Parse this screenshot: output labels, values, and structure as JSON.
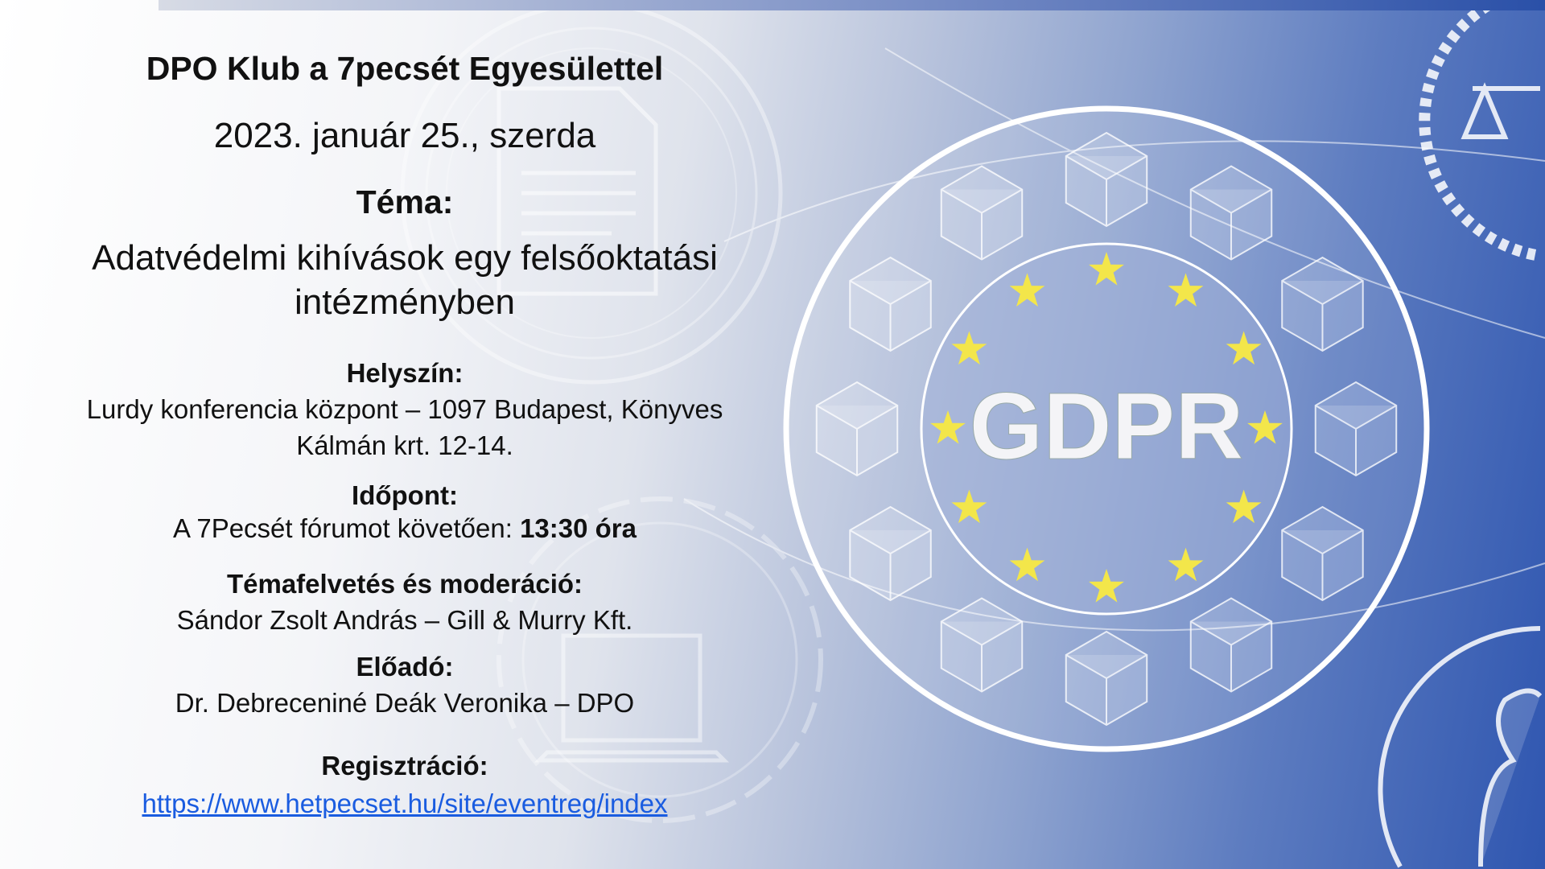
{
  "title": "DPO Klub a 7pecsét Egyesülettel",
  "date": "2023. január 25., szerda",
  "topic": {
    "label": "Téma:",
    "line1": "Adatvédelmi kihívások egy felsőoktatási",
    "line2": "intézményben"
  },
  "venue": {
    "label": "Helyszín:",
    "line1": "Lurdy konferencia központ – 1097 Budapest, Könyves",
    "line2": "Kálmán krt. 12-14."
  },
  "time": {
    "label": "Időpont:",
    "prefix": "A 7Pecsét fórumot követően: ",
    "value": "13:30 óra"
  },
  "moderation": {
    "label": "Témafelvetés és moderáció:",
    "value": "Sándor Zsolt András – Gill & Murry Kft."
  },
  "speaker": {
    "label": "Előadó:",
    "value": "Dr. Debreceniné Deák Veronika – DPO"
  },
  "registration": {
    "label": "Regisztráció:",
    "url": "https://www.hetpecset.hu/site/eventreg/index"
  },
  "graphic": {
    "emblem_text": "GDPR",
    "star_color": "#f3e64a",
    "link_color": "#1a5ce0",
    "icons": [
      "document-icon",
      "laptop-icon",
      "scales-icon",
      "person-icon",
      "cube-icon"
    ]
  }
}
